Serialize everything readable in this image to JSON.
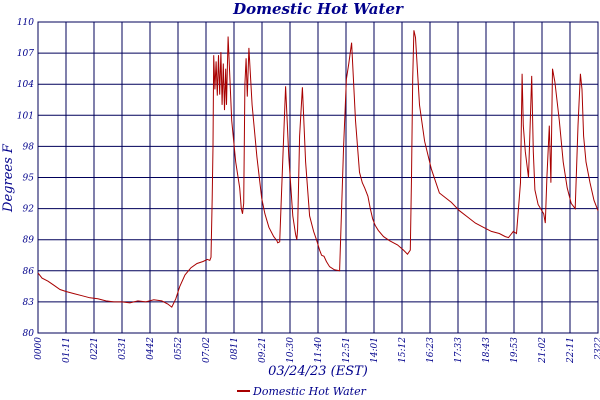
{
  "chart_data": {
    "type": "line",
    "title": "Domestic Hot Water",
    "xlabel": "03/24/23 (EST)",
    "ylabel": "Degrees F",
    "ylim": [
      80,
      110
    ],
    "yticks": [
      "80",
      "83",
      "86",
      "89",
      "92",
      "95",
      "98",
      "101",
      "104",
      "107",
      "110"
    ],
    "xticks": [
      "0000",
      "01:11",
      "0221",
      "0331",
      "0442",
      "0552",
      "07:02",
      "0811",
      "09:21",
      "10:30",
      "11:40",
      "12:51",
      "14:01",
      "15:12",
      "16:23",
      "17:33",
      "18:43",
      "19:53",
      "21:02",
      "22:11",
      "2322"
    ],
    "xlim": [
      0,
      1402
    ],
    "legend": {
      "position": "bottom",
      "entries": [
        "Domestic Hot Water"
      ]
    },
    "colors": {
      "series": "#a80000",
      "grid": "#00005a",
      "text": "#00008b"
    },
    "series": [
      {
        "name": "Domestic Hot Water",
        "x": [
          0,
          10,
          25,
          40,
          55,
          70,
          90,
          110,
          130,
          150,
          170,
          190,
          210,
          230,
          250,
          270,
          290,
          310,
          325,
          335,
          345,
          355,
          368,
          383,
          398,
          413,
          424,
          430,
          433,
          436,
          438,
          440,
          443,
          446,
          449,
          452,
          455,
          458,
          461,
          464,
          467,
          470,
          472,
          476,
          485,
          495,
          505,
          507,
          509,
          512,
          515,
          518,
          521,
          524,
          528,
          536,
          548,
          560,
          568,
          578,
          590,
          598,
          600,
          605,
          612,
          620,
          628,
          638,
          645,
          648,
          650,
          655,
          662,
          670,
          680,
          690,
          698,
          705,
          710,
          716,
          722,
          730,
          742,
          755,
          765,
          772,
          778,
          785,
          795,
          805,
          812,
          818,
          826,
          832,
          838,
          844,
          852,
          865,
          880,
          900,
          915,
          925,
          932,
          935,
          938,
          941,
          945,
          955,
          968,
          985,
          1005,
          1035,
          1055,
          1075,
          1095,
          1115,
          1135,
          1155,
          1170,
          1178,
          1184,
          1190,
          1198,
          1208,
          1212,
          1215,
          1220,
          1228,
          1236,
          1240,
          1244,
          1252,
          1266,
          1270,
          1274,
          1280,
          1284,
          1288,
          1294,
          1305,
          1315,
          1325,
          1335,
          1345,
          1352,
          1358,
          1362,
          1366,
          1372,
          1382,
          1392,
          1402
        ],
        "values": [
          85.8,
          85.3,
          85.0,
          84.6,
          84.2,
          84.0,
          83.8,
          83.6,
          83.4,
          83.3,
          83.1,
          83.0,
          83.0,
          82.9,
          83.1,
          83.0,
          83.2,
          83.1,
          82.8,
          82.5,
          83.3,
          84.5,
          85.6,
          86.3,
          86.7,
          86.9,
          87.1,
          87.0,
          87.3,
          93.0,
          98.0,
          106.8,
          103.5,
          106.2,
          102.9,
          106.8,
          103.0,
          107.1,
          102.0,
          106.0,
          101.5,
          105.5,
          102.0,
          108.6,
          100.5,
          96.5,
          94.0,
          93.0,
          92.0,
          91.5,
          92.5,
          104.0,
          106.5,
          102.8,
          107.5,
          102.0,
          97.0,
          93.0,
          91.5,
          90.2,
          89.3,
          88.9,
          88.7,
          88.8,
          96.0,
          103.8,
          97.0,
          91.3,
          89.5,
          89.0,
          90.0,
          99.0,
          103.7,
          96.5,
          91.3,
          89.8,
          88.9,
          88.0,
          87.5,
          87.4,
          86.9,
          86.4,
          86.1,
          86.0,
          98.0,
          104.5,
          106.0,
          108.0,
          100.5,
          95.5,
          94.5,
          94.0,
          93.2,
          92.0,
          91.0,
          90.4,
          89.9,
          89.3,
          88.9,
          88.5,
          88.0,
          87.6,
          88.0,
          95.0,
          104.5,
          109.2,
          108.5,
          102.0,
          98.5,
          95.8,
          93.5,
          92.6,
          91.8,
          91.2,
          90.6,
          90.2,
          89.8,
          89.6,
          89.3,
          89.2,
          89.5,
          89.8,
          89.6,
          94.5,
          105.0,
          100.0,
          97.5,
          95.0,
          104.8,
          97.5,
          93.8,
          92.4,
          91.5,
          90.6,
          95.0,
          100.0,
          94.5,
          105.5,
          104.2,
          100.5,
          96.5,
          94.0,
          92.5,
          92.0,
          100.0,
          105.0,
          103.5,
          99.0,
          96.5,
          94.5,
          92.8,
          91.8
        ]
      }
    ]
  }
}
